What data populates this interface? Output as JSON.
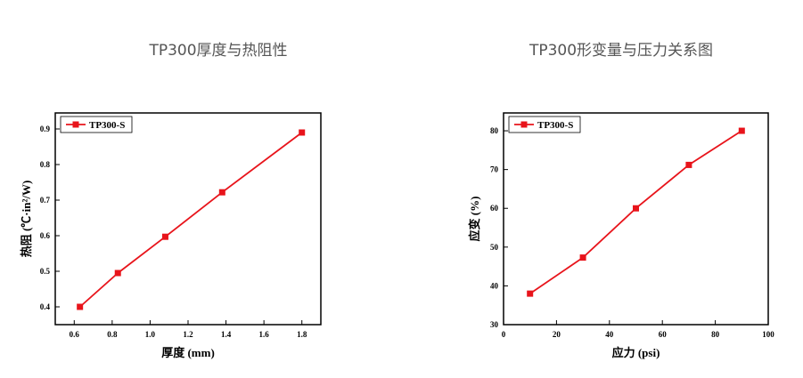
{
  "chart_data": [
    {
      "type": "line",
      "title": "TP300厚度与热阻性",
      "x_label": "厚度 (mm)",
      "y_label": "热阻 (℃·in²/W)",
      "x": [
        0.63,
        0.83,
        1.08,
        1.38,
        1.8
      ],
      "series": [
        {
          "name": "TP300-S",
          "color": "#e8141b",
          "values": [
            0.4,
            0.495,
            0.597,
            0.722,
            0.89
          ]
        }
      ],
      "xlim": [
        0.5,
        1.9
      ],
      "xticks": [
        0.6,
        0.8,
        {
          "value": 1,
          "label": "1.0"
        },
        1.2,
        1.4,
        1.6,
        1.8
      ],
      "ylim": [
        0.35,
        0.945
      ],
      "yticks": [
        0.4,
        0.5,
        0.6,
        0.7,
        0.8,
        0.9
      ],
      "legend": "upper-left"
    },
    {
      "type": "line",
      "title": "TP300形变量与压力关系图",
      "x_label": "应力 (psi)",
      "y_label": "应变 (%)",
      "x": [
        10,
        30,
        50,
        70,
        90
      ],
      "series": [
        {
          "name": "TP300-S",
          "color": "#e8141b",
          "values": [
            38,
            47.3,
            60,
            71.2,
            80
          ]
        }
      ],
      "xlim": [
        0,
        100
      ],
      "xticks": [
        0,
        20,
        40,
        60,
        80,
        100
      ],
      "ylim": [
        30,
        84.6
      ],
      "yticks": [
        30,
        40,
        50,
        60,
        70,
        80
      ],
      "legend": "upper-left"
    }
  ]
}
